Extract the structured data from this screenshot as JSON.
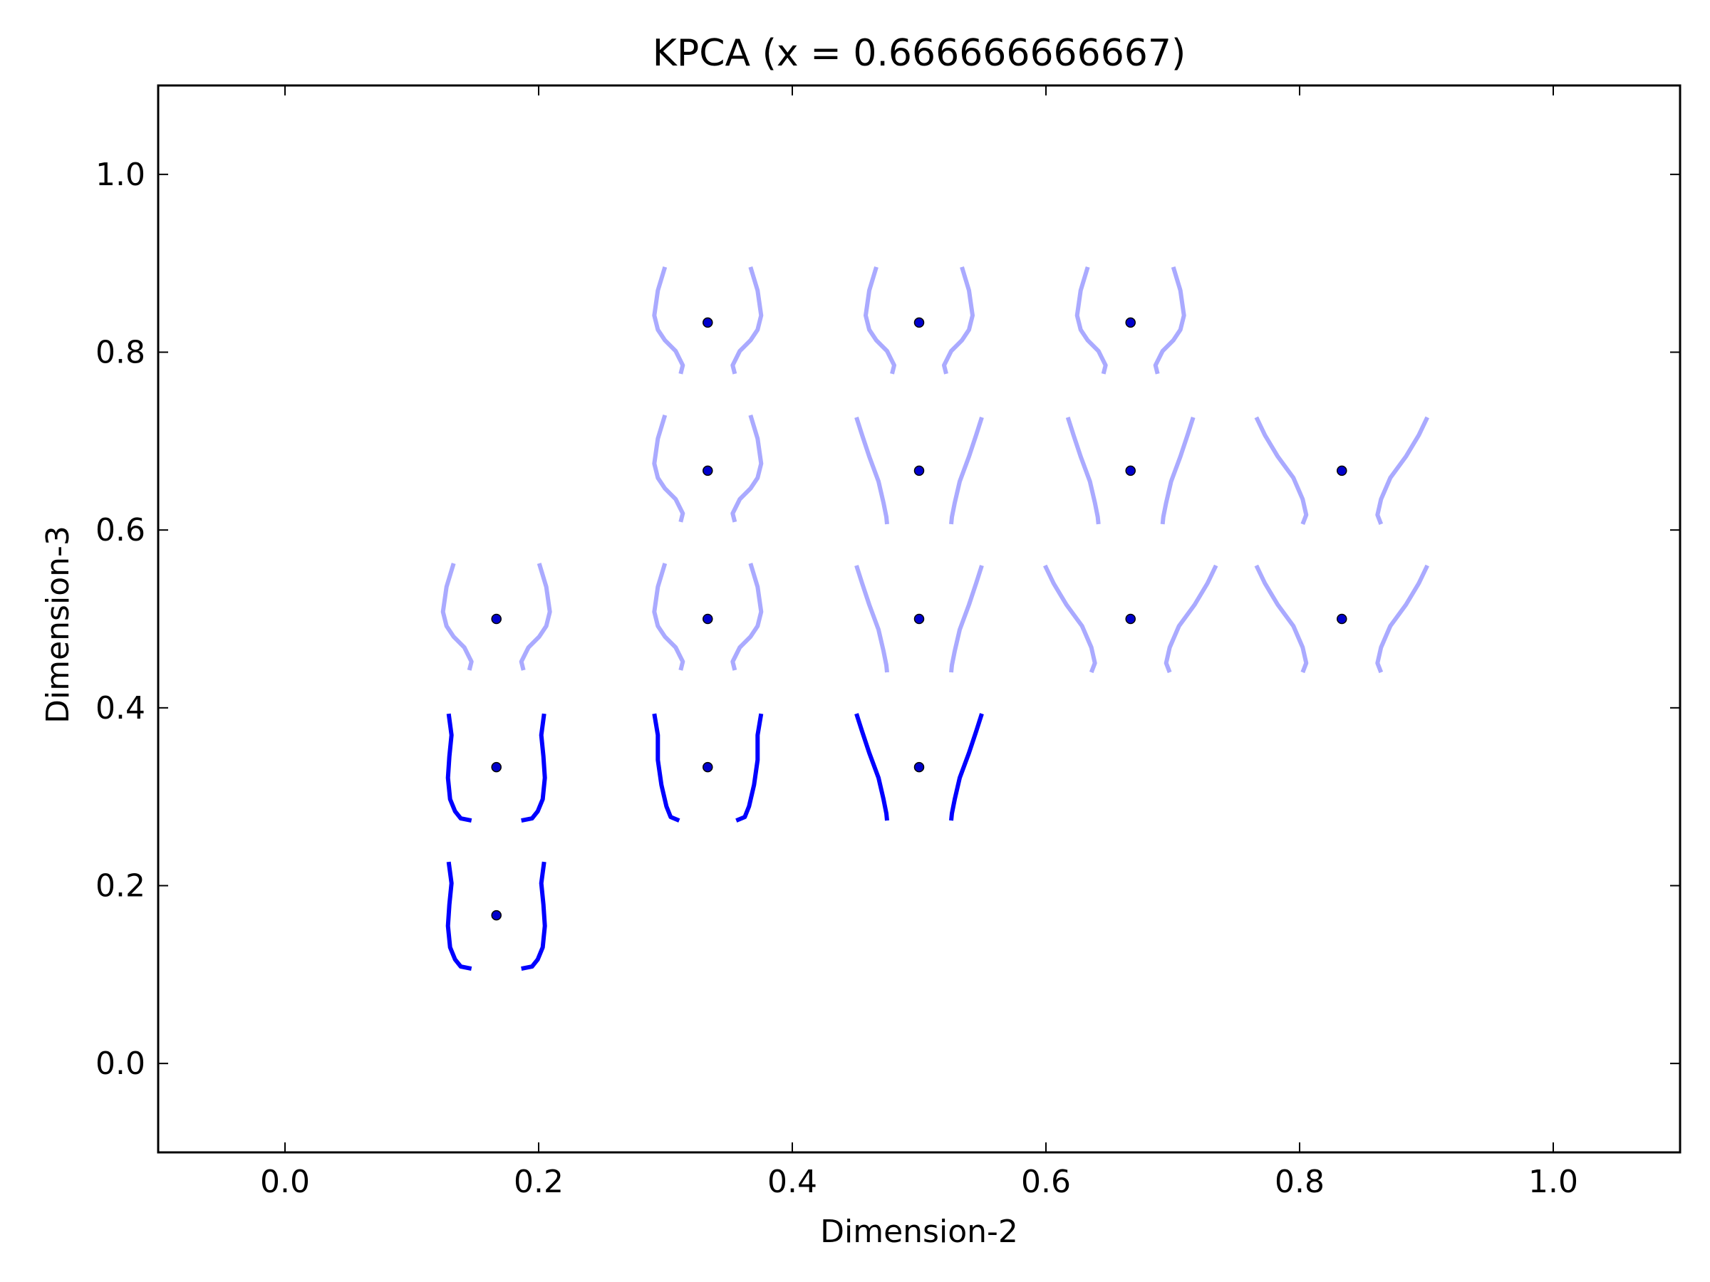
{
  "chart_data": {
    "type": "scatter",
    "title": "KPCA (x = 0.666666666667)",
    "xlabel": "Dimension-2",
    "ylabel": "Dimension-3",
    "xlim": [
      -0.1,
      1.1
    ],
    "ylim": [
      -0.1,
      1.1
    ],
    "xticks": [
      "0.0",
      "0.2",
      "0.4",
      "0.6",
      "0.8",
      "1.0"
    ],
    "yticks": [
      "0.0",
      "0.2",
      "0.4",
      "0.6",
      "0.8",
      "1.0"
    ],
    "grid": false,
    "colors": {
      "dark_glyph": "#0000ff",
      "light_glyph": "#aaaaff",
      "point_fill": "#0000cc",
      "point_edge": "#000000"
    },
    "points": [
      {
        "x": 0.1667,
        "y": 0.1667,
        "shade": "dark",
        "shape": "straight"
      },
      {
        "x": 0.1667,
        "y": 0.3333,
        "shade": "dark",
        "shape": "straight"
      },
      {
        "x": 0.3333,
        "y": 0.3333,
        "shade": "dark",
        "shape": "slant"
      },
      {
        "x": 0.5,
        "y": 0.3333,
        "shade": "dark",
        "shape": "flare"
      },
      {
        "x": 0.1667,
        "y": 0.5,
        "shade": "light",
        "shape": "bowl"
      },
      {
        "x": 0.3333,
        "y": 0.5,
        "shade": "light",
        "shape": "bowl"
      },
      {
        "x": 0.5,
        "y": 0.5,
        "shade": "light",
        "shape": "flare"
      },
      {
        "x": 0.6667,
        "y": 0.5,
        "shade": "light",
        "shape": "wide"
      },
      {
        "x": 0.8333,
        "y": 0.5,
        "shade": "light",
        "shape": "wide"
      },
      {
        "x": 0.3333,
        "y": 0.6667,
        "shade": "light",
        "shape": "bowl"
      },
      {
        "x": 0.5,
        "y": 0.6667,
        "shade": "light",
        "shape": "flare"
      },
      {
        "x": 0.6667,
        "y": 0.6667,
        "shade": "light",
        "shape": "flare"
      },
      {
        "x": 0.8333,
        "y": 0.6667,
        "shade": "light",
        "shape": "wide"
      },
      {
        "x": 0.3333,
        "y": 0.8333,
        "shade": "light",
        "shape": "bowl"
      },
      {
        "x": 0.5,
        "y": 0.8333,
        "shade": "light",
        "shape": "bowl"
      },
      {
        "x": 0.6667,
        "y": 0.8333,
        "shade": "light",
        "shape": "bowl"
      }
    ]
  }
}
